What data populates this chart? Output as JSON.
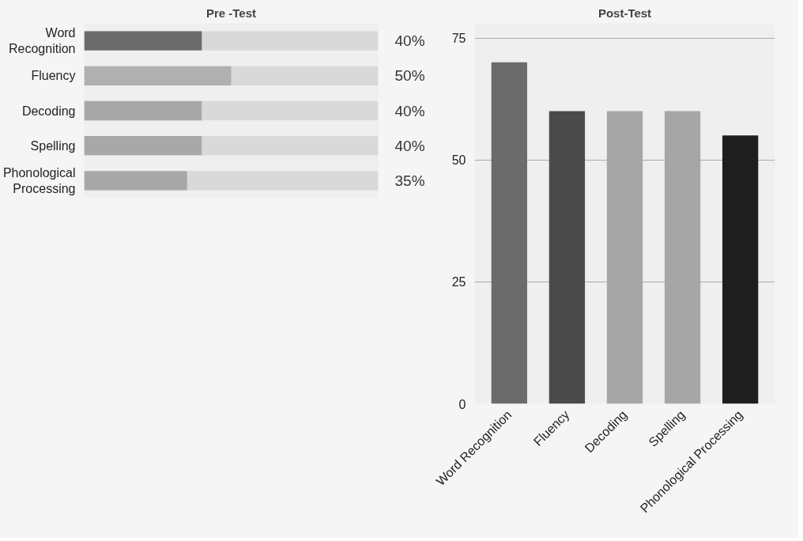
{
  "chart_data": [
    {
      "type": "bar",
      "title": "Pre -Test",
      "orientation": "horizontal",
      "categories": [
        "Word Recognition",
        "Fluency",
        "Decoding",
        "Spelling",
        "Phonological Processing"
      ],
      "xlim": [
        0,
        100
      ],
      "tick_labels": "y",
      "grid": false,
      "series": [
        {
          "colors": [
            "#6b6b6b",
            "#b0b0b0",
            "#a8a8a8",
            "#a8a8a8",
            "#a8a8a8"
          ],
          "values": [
            40,
            50,
            40,
            40,
            35
          ],
          "value_labels": [
            "40%",
            "50%",
            "40%",
            "40%",
            "35%"
          ]
        }
      ]
    },
    {
      "type": "bar",
      "title": "Post-Test",
      "categories": [
        "Word Recognition",
        "Fluency",
        "Decoding",
        "Spelling",
        "Phonological Processing"
      ],
      "ylim": [
        0,
        78
      ],
      "yticks": [
        0,
        25,
        50,
        75
      ],
      "grid": "y",
      "colors": [
        "#6b6b6b",
        "#4a4a4a",
        "#a6a6a6",
        "#a6a6a6",
        "#1e1e1e"
      ],
      "values": [
        70,
        60,
        60,
        60,
        55
      ]
    }
  ]
}
